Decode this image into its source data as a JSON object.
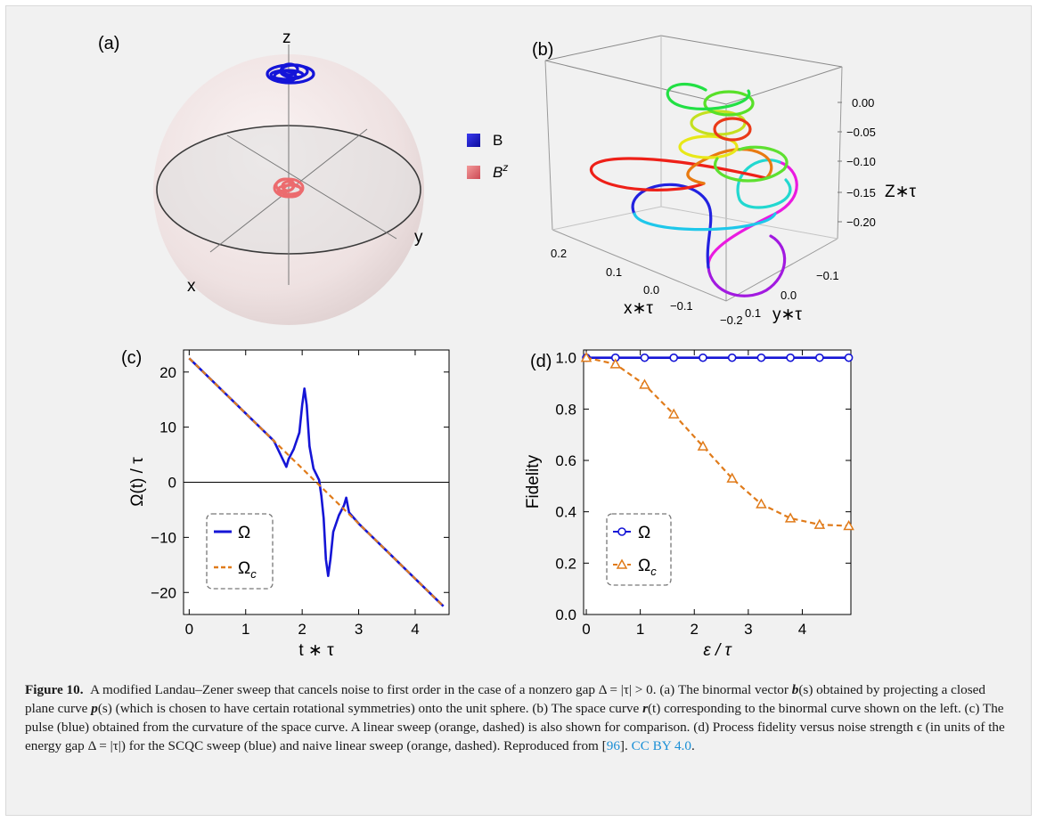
{
  "figure": {
    "panels": {
      "a": {
        "label": "(a)",
        "axes": {
          "x": "x",
          "y": "y",
          "z": "z"
        },
        "legend": [
          {
            "name": "B",
            "color": "#1a1ad6"
          },
          {
            "name": "B",
            "superscript": "z",
            "color": "#e8646a"
          }
        ]
      },
      "b": {
        "label": "(b)",
        "z_ticks": [
          "0.00",
          "−0.05",
          "−0.10",
          "−0.15",
          "−0.20"
        ],
        "z_axis_label": "Z∗τ",
        "x_ticks": [
          "0.2",
          "0.1",
          "0.0",
          "−0.1"
        ],
        "x_axis_label": "x∗τ",
        "y_ticks": [
          "−0.2",
          "0.1",
          "0.0",
          "−0.1"
        ],
        "y_axis_label": "y∗τ"
      },
      "c": {
        "label": "(c)"
      },
      "d": {
        "label": "(d)"
      }
    },
    "caption": {
      "number": "Figure 10.",
      "text_1": "A modified Landau–Zener sweep that cancels noise to first order in the case of a nonzero gap Δ = |τ| > 0. (a) The binormal vector ",
      "b_sym": "b",
      "text_2": "(s) obtained by projecting a closed plane curve ",
      "p_sym": "p",
      "text_3": "(s) (which is chosen to have certain rotational symmetries) onto the unit sphere. (b) The space curve ",
      "r_sym": "r",
      "text_4": "(t) corresponding to the binormal curve shown on the left. (c) The pulse (blue) obtained from the curvature of the space curve. A linear sweep (orange, dashed) is also shown for comparison. (d) Process fidelity versus noise strength ϵ (in units of the energy gap Δ = |τ|) for the SCQC sweep (blue) and naive linear sweep (orange, dashed). Reproduced from [",
      "ref": "96",
      "text_5": "]. ",
      "license": "CC BY 4.0",
      "text_6": "."
    }
  },
  "chart_data": [
    {
      "panel": "c",
      "type": "line",
      "xlabel": "t ∗ τ",
      "ylabel": "Ω(t) / τ",
      "xlim": [
        -0.1,
        4.6
      ],
      "ylim": [
        -24,
        24
      ],
      "xticks": [
        0,
        1,
        2,
        3,
        4
      ],
      "yticks": [
        20,
        10,
        0,
        -10,
        -20
      ],
      "ytick_labels": [
        "20",
        "10",
        "0",
        "−10",
        "−20"
      ],
      "legend": [
        "Ω",
        "Ωc"
      ],
      "series": [
        {
          "name": "Ω",
          "color": "#1515d6",
          "style": "solid",
          "x": [
            0,
            0.5,
            1.0,
            1.5,
            1.72,
            1.76,
            1.85,
            1.95,
            2.0,
            2.04,
            2.08,
            2.13,
            2.2,
            2.3,
            2.34,
            2.38,
            2.42,
            2.46,
            2.5,
            2.55,
            2.65,
            2.74,
            2.78,
            2.83,
            3.0,
            3.5,
            4.0,
            4.5
          ],
          "y": [
            22.5,
            17.5,
            12.5,
            7.5,
            2.8,
            4.2,
            6.0,
            9.0,
            14.0,
            17.0,
            14.0,
            6.5,
            2.5,
            0.4,
            -2.5,
            -6.5,
            -14.0,
            -17.0,
            -14.0,
            -9.0,
            -6.0,
            -4.2,
            -2.8,
            -5.5,
            -7.5,
            -12.5,
            -17.5,
            -22.5
          ]
        },
        {
          "name": "Ωc",
          "color": "#e07b1a",
          "style": "dashed",
          "x": [
            0,
            4.5
          ],
          "y": [
            22.5,
            -22.5
          ]
        }
      ]
    },
    {
      "panel": "d",
      "type": "line",
      "xlabel": "ε / τ",
      "ylabel": "Fidelity",
      "xlim": [
        -0.05,
        4.9
      ],
      "ylim": [
        0,
        1.03
      ],
      "xticks": [
        0,
        1,
        2,
        3,
        4
      ],
      "yticks": [
        0.0,
        0.2,
        0.4,
        0.6,
        0.8,
        1.0
      ],
      "ytick_labels": [
        "0.0",
        "0.2",
        "0.4",
        "0.6",
        "0.8",
        "1.0"
      ],
      "legend": [
        "Ω",
        "Ωc"
      ],
      "series": [
        {
          "name": "Ω",
          "color": "#1515d6",
          "style": "solid",
          "marker": "circle",
          "x": [
            0,
            0.54,
            1.08,
            1.62,
            2.16,
            2.7,
            3.24,
            3.78,
            4.32,
            4.86
          ],
          "y": [
            1.0,
            1.0,
            1.0,
            1.0,
            1.0,
            1.0,
            1.0,
            1.0,
            1.0,
            1.0
          ]
        },
        {
          "name": "Ωc",
          "color": "#e07b1a",
          "style": "dashed",
          "marker": "triangle",
          "x": [
            0,
            0.54,
            1.08,
            1.62,
            2.16,
            2.7,
            3.24,
            3.78,
            4.32,
            4.86
          ],
          "y": [
            1.0,
            0.975,
            0.895,
            0.78,
            0.655,
            0.53,
            0.43,
            0.375,
            0.35,
            0.345
          ]
        }
      ]
    }
  ]
}
